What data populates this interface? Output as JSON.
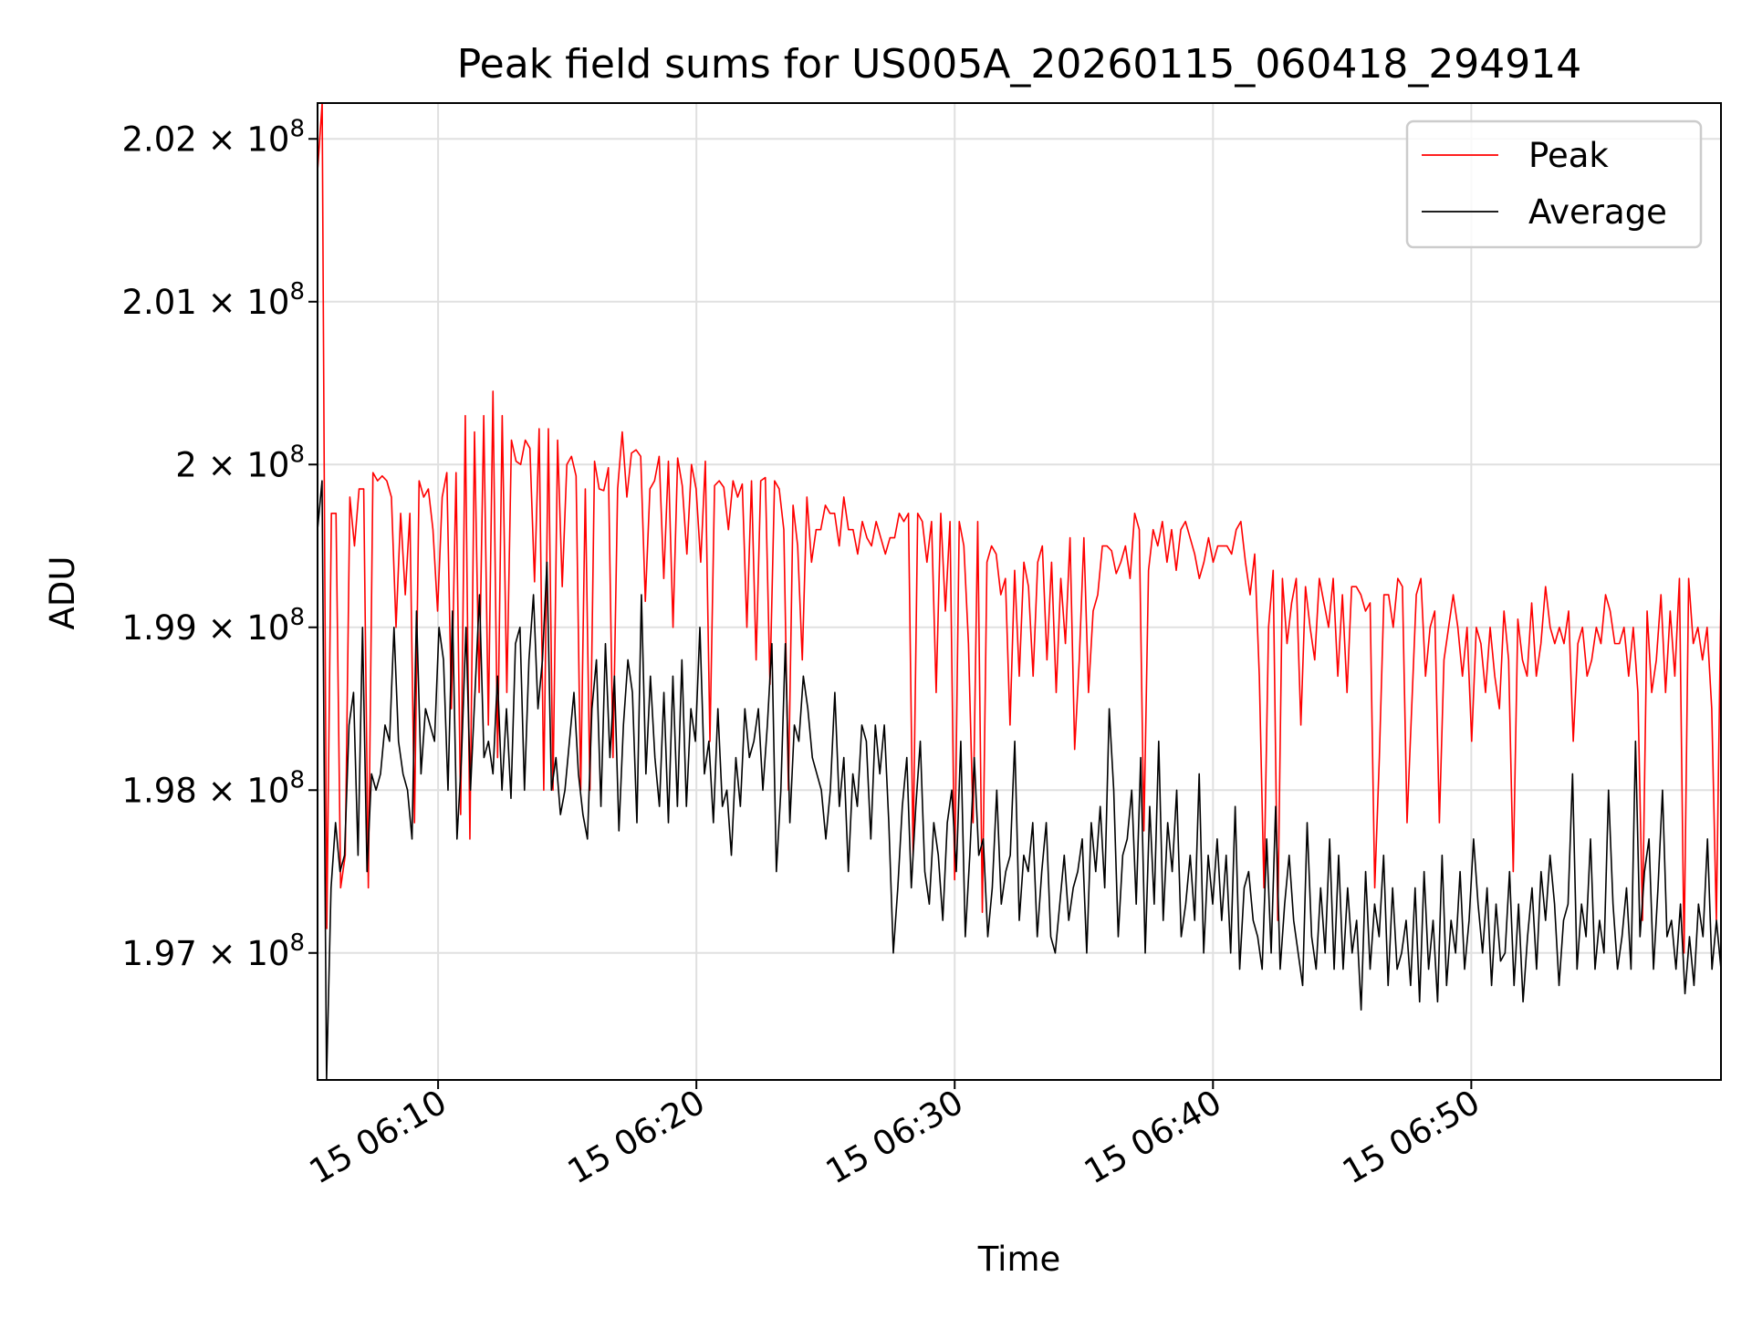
{
  "chart_data": {
    "type": "line",
    "title": "Peak field sums for US005A_20260115_060418_294914",
    "xlabel": "Time",
    "ylabel": "ADU",
    "x_start": "2026-01-15T06:05:20",
    "x_end": "2026-01-15T06:59:40",
    "xlim": [
      "2026-01-15T06:05:20",
      "2026-01-15T06:59:40"
    ],
    "ylim": [
      196220000,
      202220000
    ],
    "x_ticks": [
      {
        "value": "2026-01-15T06:10:00",
        "label": "15 06:10"
      },
      {
        "value": "2026-01-15T06:20:00",
        "label": "15 06:20"
      },
      {
        "value": "2026-01-15T06:30:00",
        "label": "15 06:30"
      },
      {
        "value": "2026-01-15T06:40:00",
        "label": "15 06:40"
      },
      {
        "value": "2026-01-15T06:50:00",
        "label": "15 06:50"
      }
    ],
    "y_ticks": [
      {
        "value": 197000000,
        "mantissa": "1.97"
      },
      {
        "value": 198000000,
        "mantissa": "1.98"
      },
      {
        "value": 199000000,
        "mantissa": "1.99"
      },
      {
        "value": 200000000,
        "mantissa": "2"
      },
      {
        "value": 201000000,
        "mantissa": "2.01"
      },
      {
        "value": 202000000,
        "mantissa": "2.02"
      }
    ],
    "tick_multiplier": "×",
    "tick_base": "10",
    "tick_exponent": "8",
    "grid": true,
    "legend_position": "top-right",
    "series": [
      {
        "name": "Peak",
        "color": "#ff0000",
        "values": [
          201800000,
          202220000,
          197150000,
          199700000,
          199700000,
          197400000,
          197600000,
          199800000,
          199500000,
          199850000,
          199850000,
          197400000,
          199950000,
          199900000,
          199930000,
          199900000,
          199800000,
          199000000,
          199700000,
          199200000,
          199700000,
          197800000,
          199900000,
          199800000,
          199850000,
          199600000,
          199100000,
          199800000,
          199950000,
          198500000,
          199950000,
          197850000,
          200300000,
          197700000,
          200200000,
          198600000,
          200300000,
          198400000,
          200450000,
          198200000,
          200300000,
          198600000,
          200150000,
          200020000,
          200000000,
          200150000,
          200100000,
          199280000,
          200220000,
          198000000,
          200220000,
          198000000,
          200150000,
          199250000,
          200000000,
          200050000,
          199930000,
          198000000,
          199850000,
          198000000,
          200020000,
          199850000,
          199840000,
          199980000,
          198200000,
          199850000,
          200200000,
          199800000,
          200070000,
          200090000,
          200050000,
          199160000,
          199850000,
          199900000,
          200050000,
          199300000,
          200020000,
          199000000,
          200040000,
          199870000,
          199450000,
          200000000,
          199850000,
          199400000,
          200020000,
          198300000,
          199870000,
          199900000,
          199860000,
          199600000,
          199900000,
          199800000,
          199880000,
          199000000,
          199900000,
          198800000,
          199900000,
          199920000,
          198650000,
          199900000,
          199850000,
          199600000,
          198000000,
          199750000,
          199500000,
          198800000,
          199800000,
          199400000,
          199600000,
          199600000,
          199750000,
          199700000,
          199700000,
          199500000,
          199800000,
          199600000,
          199600000,
          199450000,
          199650000,
          199550000,
          199500000,
          199650000,
          199550000,
          199450000,
          199550000,
          199550000,
          199700000,
          199650000,
          199700000,
          197600000,
          199700000,
          199650000,
          199400000,
          199650000,
          198600000,
          199700000,
          199100000,
          199650000,
          197450000,
          199650000,
          199500000,
          198900000,
          197800000,
          199650000,
          197250000,
          199400000,
          199500000,
          199450000,
          199200000,
          199300000,
          198400000,
          199350000,
          198700000,
          199400000,
          199250000,
          198700000,
          199400000,
          199500000,
          198800000,
          199400000,
          198600000,
          199300000,
          198900000,
          199550000,
          198250000,
          198800000,
          199550000,
          198600000,
          199100000,
          199200000,
          199500000,
          199500000,
          199470000,
          199330000,
          199400000,
          199500000,
          199300000,
          199700000,
          199600000,
          197750000,
          199350000,
          199600000,
          199500000,
          199650000,
          199400000,
          199600000,
          199350000,
          199600000,
          199650000,
          199550000,
          199450000,
          199300000,
          199400000,
          199550000,
          199400000,
          199500000,
          199500000,
          199500000,
          199450000,
          199600000,
          199650000,
          199400000,
          199200000,
          199450000,
          198700000,
          197400000,
          199000000,
          199350000,
          197200000,
          199300000,
          198900000,
          199150000,
          199300000,
          198400000,
          199250000,
          199000000,
          198800000,
          199300000,
          199150000,
          199000000,
          199300000,
          198700000,
          199200000,
          198600000,
          199250000,
          199250000,
          199200000,
          199100000,
          199150000,
          197400000,
          198200000,
          199200000,
          199200000,
          199000000,
          199300000,
          199250000,
          197800000,
          198500000,
          199200000,
          199300000,
          198700000,
          199000000,
          199100000,
          197800000,
          198800000,
          199000000,
          199200000,
          199000000,
          198700000,
          199000000,
          198300000,
          199000000,
          198900000,
          198600000,
          199000000,
          198700000,
          198500000,
          199100000,
          198800000,
          197500000,
          199050000,
          198800000,
          198700000,
          199150000,
          198700000,
          198900000,
          199250000,
          199000000,
          198900000,
          199000000,
          198900000,
          199100000,
          198300000,
          198900000,
          199000000,
          198700000,
          198800000,
          199000000,
          198900000,
          199200000,
          199100000,
          198900000,
          198900000,
          199000000,
          198700000,
          199000000,
          198600000,
          197200000,
          199100000,
          198600000,
          198800000,
          199200000,
          198600000,
          199100000,
          198700000,
          199300000,
          197000000,
          199300000,
          198900000,
          199000000,
          198800000,
          199000000,
          198500000,
          197200000,
          199200000
        ],
        "peak_note": ""
      },
      {
        "name": "Average",
        "color": "#000000",
        "values": [
          199600000,
          199900000,
          196220000,
          197400000,
          197800000,
          197500000,
          197600000,
          198400000,
          198600000,
          197600000,
          199000000,
          197500000,
          198100000,
          198000000,
          198100000,
          198400000,
          198300000,
          199000000,
          198300000,
          198100000,
          198000000,
          197700000,
          199100000,
          198100000,
          198500000,
          198400000,
          198300000,
          199000000,
          198800000,
          198000000,
          199100000,
          197700000,
          198200000,
          199000000,
          198000000,
          198600000,
          199200000,
          198200000,
          198300000,
          198100000,
          198700000,
          198000000,
          198500000,
          197950000,
          198900000,
          199000000,
          198000000,
          198800000,
          199200000,
          198500000,
          198800000,
          199400000,
          198000000,
          198200000,
          197850000,
          198000000,
          198300000,
          198600000,
          198100000,
          197850000,
          197700000,
          198500000,
          198800000,
          197900000,
          198900000,
          198200000,
          198700000,
          197750000,
          198400000,
          198800000,
          198600000,
          197800000,
          199200000,
          198100000,
          198700000,
          198200000,
          197900000,
          198600000,
          197800000,
          198700000,
          197900000,
          198800000,
          197900000,
          198500000,
          198300000,
          199000000,
          198100000,
          198300000,
          197800000,
          198500000,
          197900000,
          198000000,
          197600000,
          198200000,
          197900000,
          198500000,
          198200000,
          198300000,
          198500000,
          198000000,
          198400000,
          198900000,
          197500000,
          198000000,
          198900000,
          197800000,
          198400000,
          198300000,
          198700000,
          198500000,
          198200000,
          198100000,
          198000000,
          197700000,
          198000000,
          198600000,
          197900000,
          198200000,
          197500000,
          198100000,
          197900000,
          198400000,
          198300000,
          197700000,
          198400000,
          198100000,
          198400000,
          197800000,
          197000000,
          197400000,
          197900000,
          198200000,
          197400000,
          197900000,
          198300000,
          197500000,
          197300000,
          197800000,
          197600000,
          197200000,
          197800000,
          198000000,
          197500000,
          198300000,
          197100000,
          197600000,
          198200000,
          197600000,
          197700000,
          197100000,
          197400000,
          198000000,
          197300000,
          197500000,
          197600000,
          198300000,
          197200000,
          197600000,
          197500000,
          197800000,
          197100000,
          197500000,
          197800000,
          197100000,
          197000000,
          197300000,
          197600000,
          197200000,
          197400000,
          197500000,
          197700000,
          197000000,
          197800000,
          197500000,
          197900000,
          197400000,
          198500000,
          198000000,
          197100000,
          197600000,
          197700000,
          198000000,
          197300000,
          198200000,
          197000000,
          197900000,
          197300000,
          198300000,
          197200000,
          197800000,
          197500000,
          198000000,
          197100000,
          197300000,
          197600000,
          197200000,
          198100000,
          197000000,
          197600000,
          197300000,
          197700000,
          197200000,
          197600000,
          197000000,
          197900000,
          196900000,
          197400000,
          197500000,
          197200000,
          197100000,
          196900000,
          197700000,
          197000000,
          197900000,
          196900000,
          197300000,
          197600000,
          197200000,
          197000000,
          196800000,
          197800000,
          197100000,
          196900000,
          197400000,
          197000000,
          197700000,
          196900000,
          197600000,
          196900000,
          197400000,
          197000000,
          197200000,
          196650000,
          197500000,
          196900000,
          197300000,
          197100000,
          197600000,
          196800000,
          197400000,
          196900000,
          197000000,
          197200000,
          196800000,
          197400000,
          196700000,
          197500000,
          196900000,
          197200000,
          196700000,
          197600000,
          196800000,
          197200000,
          197000000,
          197500000,
          196900000,
          197200000,
          197700000,
          197300000,
          197000000,
          197400000,
          196800000,
          197300000,
          196950000,
          197000000,
          197500000,
          196800000,
          197300000,
          196700000,
          197100000,
          197400000,
          196900000,
          197500000,
          197200000,
          197600000,
          197300000,
          196800000,
          197200000,
          197300000,
          198100000,
          196900000,
          197300000,
          197100000,
          197700000,
          196900000,
          197200000,
          197000000,
          198000000,
          197300000,
          196900000,
          197100000,
          197400000,
          196900000,
          198300000,
          197100000,
          197500000,
          197700000,
          196900000,
          197400000,
          198000000,
          197100000,
          197200000,
          196900000,
          197300000,
          196750000,
          197100000,
          196800000,
          197300000,
          197100000,
          197700000,
          196900000,
          197200000,
          196900000
        ]
      }
    ]
  }
}
